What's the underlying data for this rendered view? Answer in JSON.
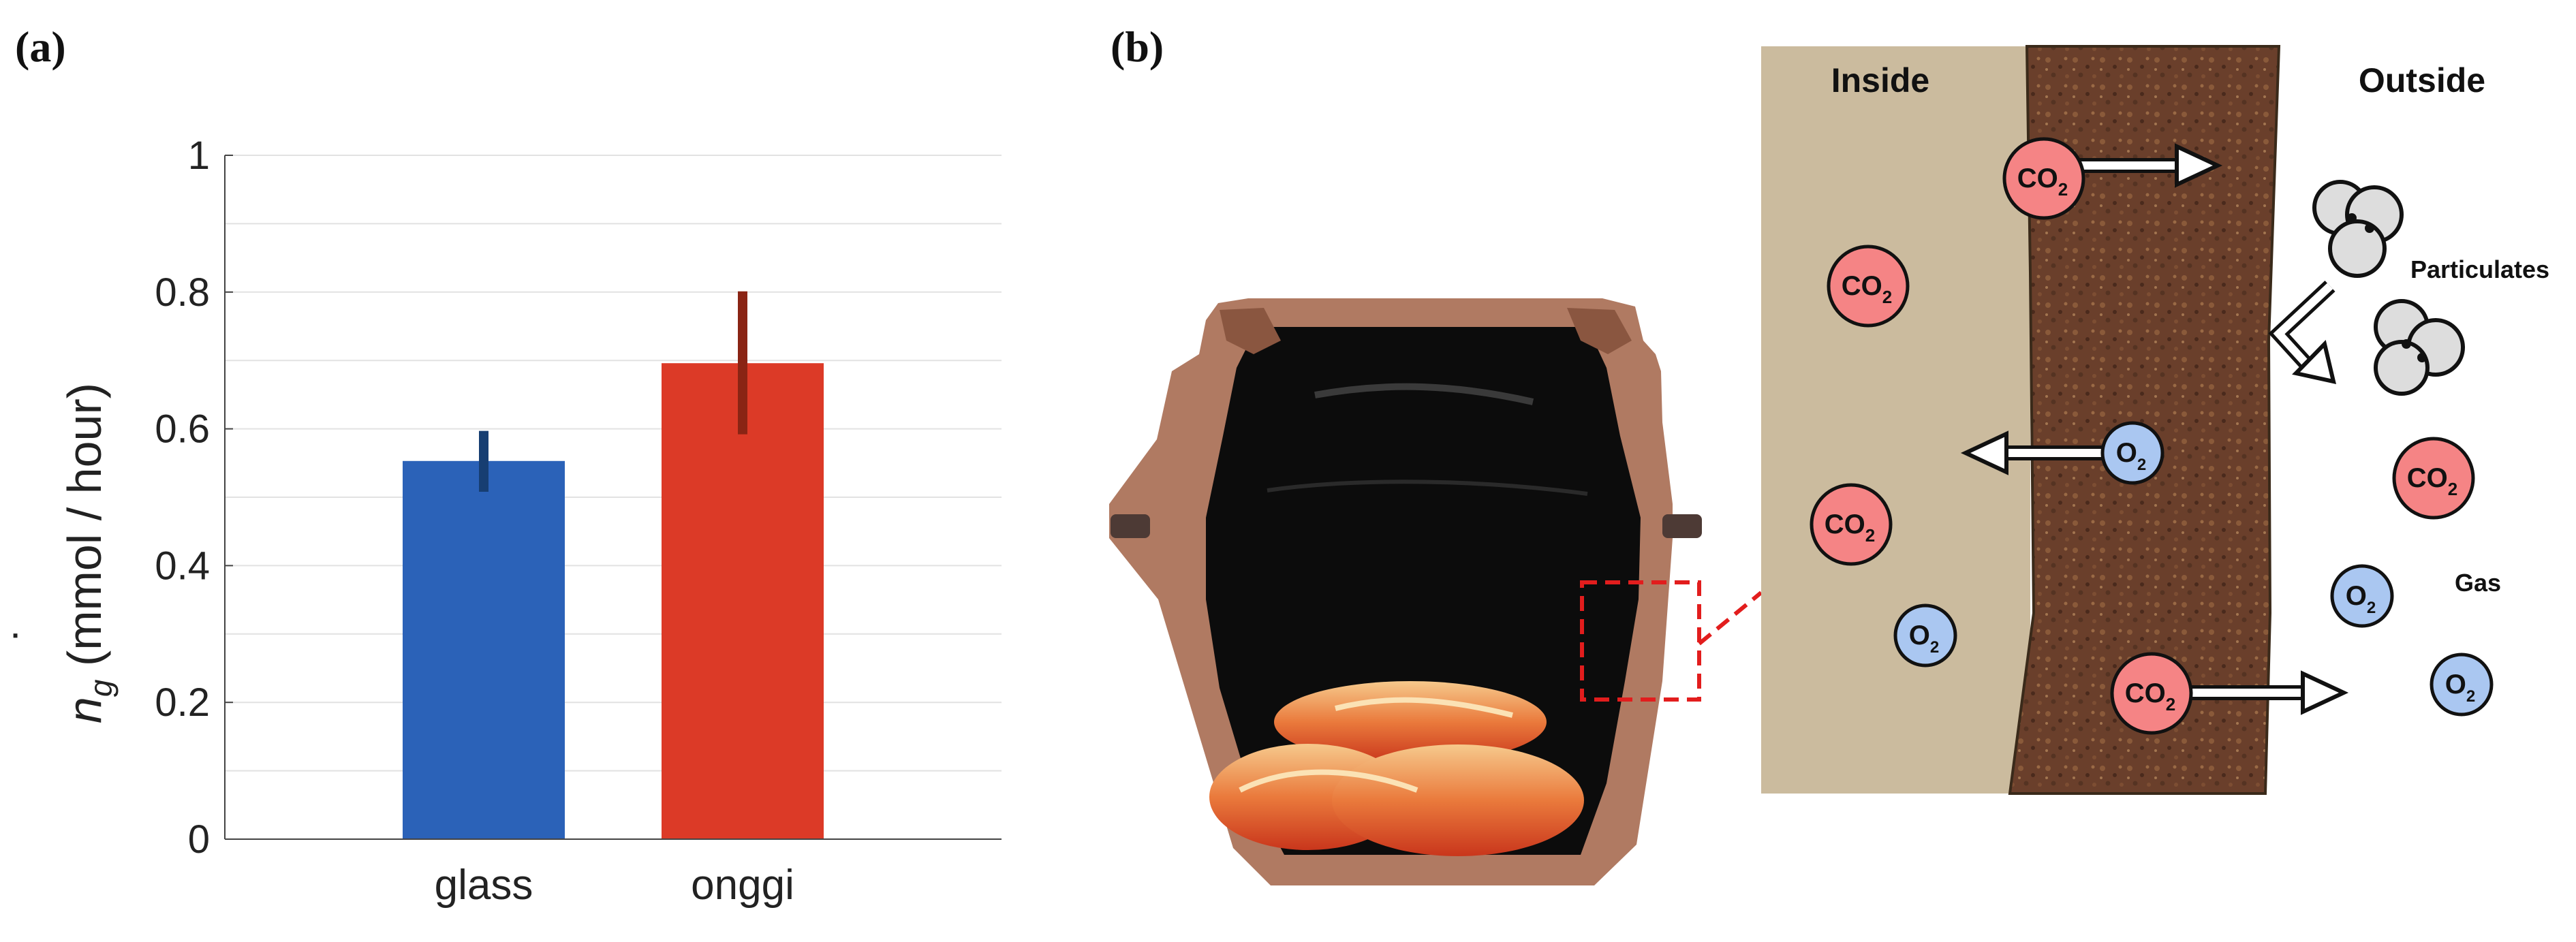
{
  "panel_labels": {
    "a": "(a)",
    "b": "(b)"
  },
  "chart_data": {
    "type": "bar",
    "categories": [
      "glass",
      "onggi"
    ],
    "values": [
      0.553,
      0.696
    ],
    "error_low": [
      0.508,
      0.592
    ],
    "error_high": [
      0.597,
      0.801
    ],
    "ylabel": "ṅg (mmol / hour)",
    "ylabel_main": "n",
    "ylabel_sub": "g",
    "ylabel_unit": " (mmol / hour)",
    "ylim": [
      0,
      1
    ],
    "yticks": [
      0,
      0.2,
      0.4,
      0.6,
      0.8,
      1
    ],
    "ytick_labels": [
      "0",
      "0.2",
      "0.4",
      "0.6",
      "0.8",
      "1"
    ],
    "bar_colors": [
      "#2b62b8",
      "#dc3a27"
    ],
    "error_colors": [
      "#173e72",
      "#8a2414"
    ],
    "grid": true
  },
  "diagram": {
    "inside_label": "Inside",
    "outside_label": "Outside",
    "particulates_label": "Particulates",
    "gas_label": "Gas",
    "co2": "CO",
    "o2": "O",
    "subscript": "2",
    "colors": {
      "inside_fill": "#cbbb9e",
      "wall_fill": "#6a3f2b",
      "co2_fill": "#f58485",
      "o2_fill": "#aac7f1",
      "particle_fill": "#dddddd",
      "dash_red": "#e21d1d"
    }
  }
}
